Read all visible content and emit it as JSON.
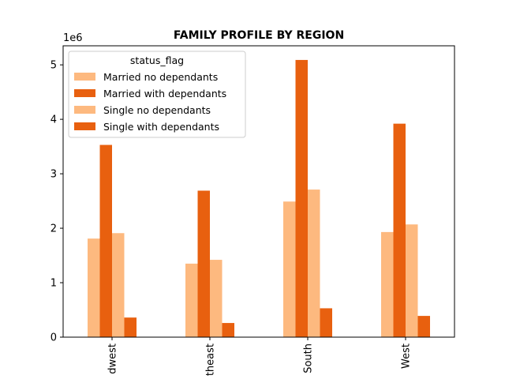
{
  "chart_data": {
    "type": "bar",
    "title": "FAMILY PROFILE BY REGION",
    "xlabel": "",
    "ylabel": "",
    "y_offset_label": "1e6",
    "y_multiplier": 1000000,
    "ylim": [
      0,
      5350000
    ],
    "yticks": [
      0,
      1,
      2,
      3,
      4,
      5
    ],
    "ytick_labels": [
      "0",
      "1",
      "2",
      "3",
      "4",
      "5"
    ],
    "categories": [
      "Midwest",
      "Northeast",
      "South",
      "West"
    ],
    "category_labels_visible": [
      "dwest",
      "theast",
      "South",
      "West"
    ],
    "legend": {
      "title": "status_flag",
      "position": "upper left"
    },
    "series": [
      {
        "name": "Married no dependants",
        "color": "#fdb97f",
        "values": [
          1810000,
          1350000,
          2490000,
          1930000
        ]
      },
      {
        "name": "Married with dependants",
        "color": "#e8600f",
        "values": [
          3530000,
          2690000,
          5090000,
          3920000
        ]
      },
      {
        "name": "Single no dependants",
        "color": "#fdb97f",
        "values": [
          1910000,
          1420000,
          2710000,
          2070000
        ]
      },
      {
        "name": "Single with dependants",
        "color": "#e8600f",
        "values": [
          360000,
          260000,
          530000,
          390000
        ]
      }
    ]
  }
}
